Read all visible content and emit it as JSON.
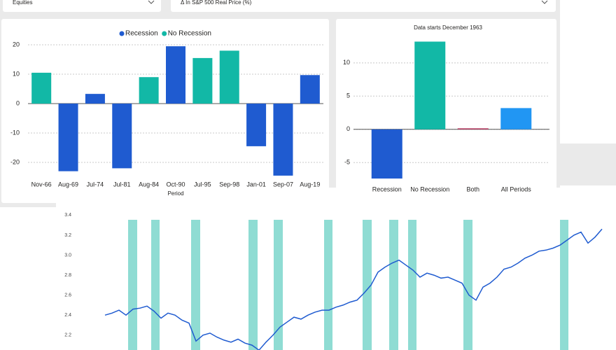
{
  "filters": [
    "Equities",
    "Δ In S&P 500 Real Price (%)"
  ],
  "chart_data": [
    {
      "type": "bar",
      "categories": [
        "Nov-66",
        "Aug-69",
        "Jul-74",
        "Jul-81",
        "Aug-84",
        "Oct-90",
        "Jul-95",
        "Sep-98",
        "Jan-01",
        "Sep-07",
        "Aug-19"
      ],
      "series": [
        {
          "name": "Recession",
          "color": "#1f5bd0",
          "values": [
            null,
            -23,
            3.3,
            -22,
            null,
            19.5,
            null,
            null,
            -14.5,
            -24.5,
            9.7
          ]
        },
        {
          "name": "No Recession",
          "color": "#12b8a6",
          "values": [
            10.5,
            null,
            null,
            null,
            9,
            null,
            15.5,
            18,
            null,
            null,
            null
          ]
        }
      ],
      "x_label": "Period",
      "ylim": [
        -25,
        23
      ],
      "yticks": [
        -20,
        -10,
        0,
        10,
        20
      ],
      "grid": true,
      "legend": "top"
    },
    {
      "type": "bar",
      "title": "Data starts December 1963",
      "categories": [
        "Recession",
        "No Recession",
        "Both",
        "All Periods"
      ],
      "values": [
        -7.4,
        13.2,
        0.15,
        3.2
      ],
      "colors": [
        "#1f5bd0",
        "#12b8a6",
        "#b5305a",
        "#2196f3"
      ],
      "ylim": [
        -7.5,
        13.5
      ],
      "yticks": [
        -5,
        0,
        5,
        10
      ],
      "grid": true
    },
    {
      "type": "line",
      "color": "#1f5bd0",
      "band_color": "#8fdcd3",
      "values": [
        2.4,
        2.42,
        2.45,
        2.4,
        2.46,
        2.47,
        2.49,
        2.44,
        2.37,
        2.42,
        2.4,
        2.35,
        2.32,
        2.14,
        2.2,
        2.22,
        2.18,
        2.15,
        2.13,
        2.16,
        2.12,
        2.1,
        2.05,
        2.13,
        2.2,
        2.28,
        2.33,
        2.38,
        2.36,
        2.4,
        2.43,
        2.45,
        2.45,
        2.48,
        2.5,
        2.53,
        2.55,
        2.62,
        2.7,
        2.83,
        2.88,
        2.92,
        2.95,
        2.9,
        2.85,
        2.78,
        2.82,
        2.8,
        2.77,
        2.78,
        2.75,
        2.72,
        2.6,
        2.55,
        2.68,
        2.72,
        2.78,
        2.86,
        2.88,
        2.92,
        2.97,
        3.0,
        3.04,
        3.05,
        3.07,
        3.1,
        3.15,
        3.2,
        3.23,
        3.12,
        3.18,
        3.26
      ],
      "recession_bands": [
        [
          3.3,
          4.6
        ],
        [
          6.6,
          7.8
        ],
        [
          12.3,
          13.6
        ],
        [
          20.5,
          21.8
        ],
        [
          24.1,
          25.4
        ],
        [
          31.3,
          32.5
        ],
        [
          36.8,
          38.1
        ],
        [
          40.6,
          41.9
        ],
        [
          43.3,
          44.5
        ],
        [
          51.2,
          52.5
        ],
        [
          65,
          66.2
        ]
      ],
      "xlim": [
        -5,
        73
      ],
      "ylim": [
        2.05,
        3.45
      ],
      "yticks": [
        2.2,
        2.4,
        2.6,
        2.8,
        {
          "value": 3,
          "label": "3.0"
        },
        3.2,
        3.4
      ],
      "grid": false
    }
  ]
}
